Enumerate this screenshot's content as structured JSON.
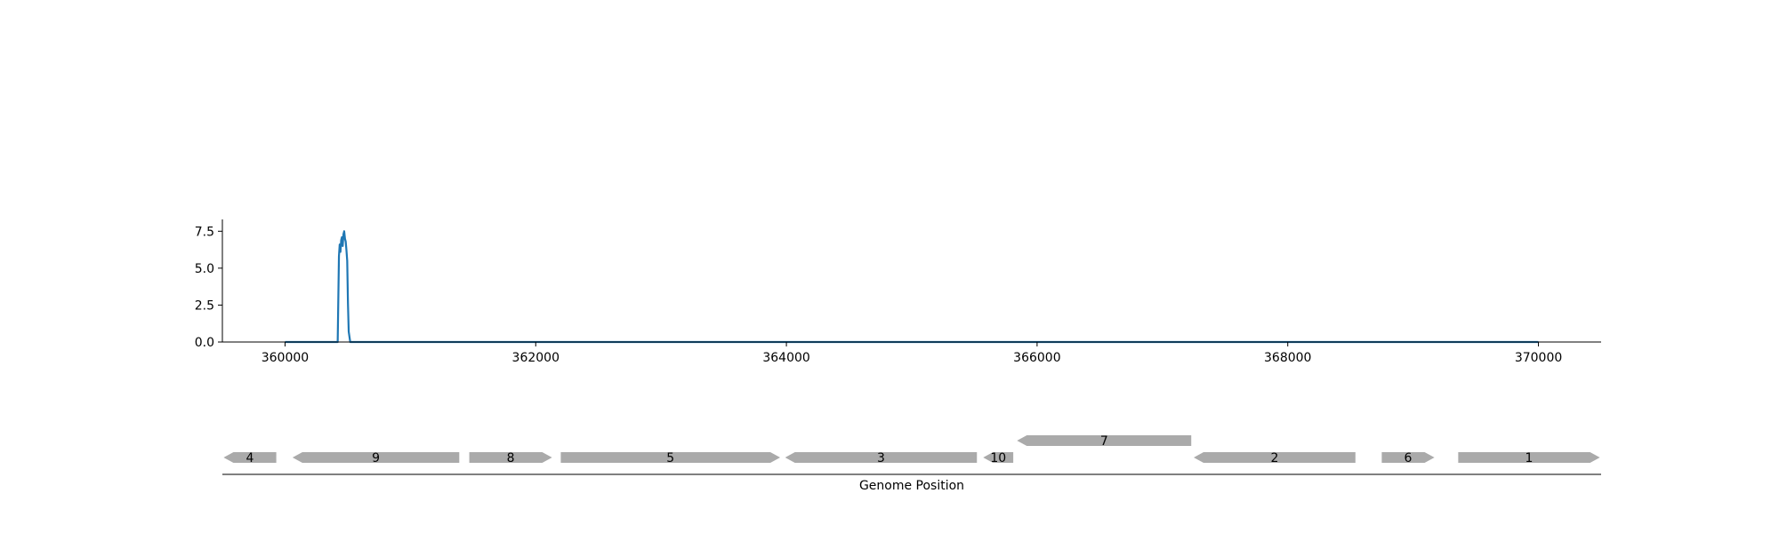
{
  "chart_data": [
    {
      "type": "line",
      "xlim": [
        359500,
        370500
      ],
      "ylim": [
        0,
        8.3
      ],
      "x_ticks": [
        360000,
        362000,
        364000,
        366000,
        368000,
        370000
      ],
      "x_tick_labels": [
        "360000",
        "362000",
        "364000",
        "366000",
        "368000",
        "370000"
      ],
      "y_ticks": [
        0.0,
        2.5,
        5.0,
        7.5
      ],
      "y_tick_labels": [
        "0.0",
        "2.5",
        "5.0",
        "7.5"
      ],
      "grid": false,
      "colors": {
        "line": "#1f77b4",
        "axis": "#000000"
      },
      "series": [
        {
          "x": [
            360000,
            360300,
            360420,
            360430,
            360436,
            360442,
            360448,
            360454,
            360460,
            360466,
            360472,
            360478,
            360484,
            360490,
            360496,
            360502,
            360508,
            360520,
            360600,
            362000,
            364000,
            366000,
            368000,
            370000
          ],
          "y": [
            0,
            0,
            0,
            5.8,
            6.6,
            6.1,
            6.9,
            7.1,
            6.5,
            7.3,
            7.5,
            7.0,
            6.8,
            6.2,
            5.5,
            2.6,
            0.7,
            0,
            0,
            0,
            0,
            0,
            0,
            0
          ]
        }
      ]
    },
    {
      "type": "gene-track",
      "xlabel": "Genome Position",
      "xlim": [
        359500,
        370500
      ],
      "colors": {
        "gene": "#aaaaaa",
        "axis": "#000000"
      },
      "genes": [
        {
          "label": "4",
          "start": 359510,
          "end": 359930,
          "strand": "-",
          "row": 0
        },
        {
          "label": "9",
          "start": 360060,
          "end": 361390,
          "strand": "-",
          "row": 0
        },
        {
          "label": "8",
          "start": 361470,
          "end": 362130,
          "strand": "+",
          "row": 0
        },
        {
          "label": "5",
          "start": 362200,
          "end": 363950,
          "strand": "+",
          "row": 0
        },
        {
          "label": "3",
          "start": 363990,
          "end": 365520,
          "strand": "-",
          "row": 0
        },
        {
          "label": "10",
          "start": 365570,
          "end": 365810,
          "strand": "-",
          "row": 0
        },
        {
          "label": "7",
          "start": 365840,
          "end": 367230,
          "strand": "-",
          "row": 1
        },
        {
          "label": "2",
          "start": 367250,
          "end": 368540,
          "strand": "-",
          "row": 0
        },
        {
          "label": "6",
          "start": 368750,
          "end": 369170,
          "strand": "+",
          "row": 0
        },
        {
          "label": "1",
          "start": 369360,
          "end": 370490,
          "strand": "+",
          "row": 0
        }
      ]
    }
  ]
}
